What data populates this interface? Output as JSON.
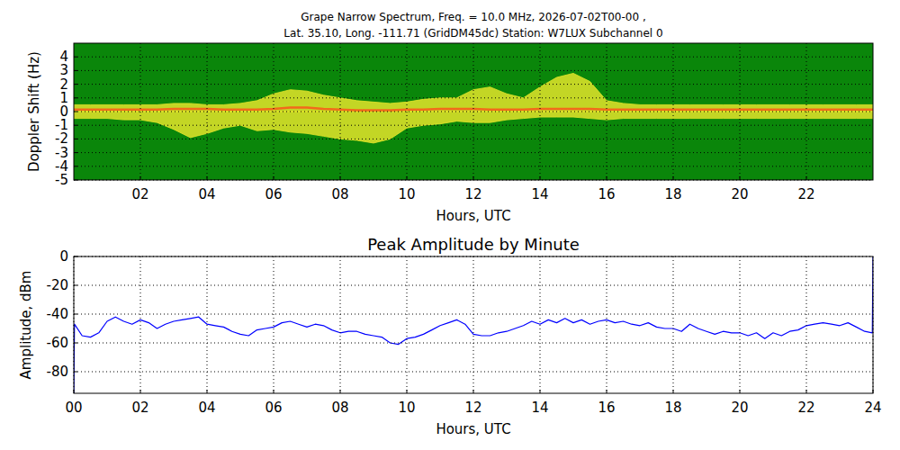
{
  "chart_data": [
    {
      "type": "area",
      "title": "Grape Narrow Spectrum, Freq. = 10.0 MHz, 2026-07-02T00-00 ,",
      "subtitle": "Lat.  35.10, Long. -111.71 (GridDM45dc) Station: W7LUX Subchannel 0",
      "x_label": "Hours, UTC",
      "y_label": "Doppler Shift (Hz)",
      "x": [
        0,
        0.5,
        1,
        1.5,
        2,
        2.5,
        3,
        3.5,
        4,
        4.5,
        5,
        5.5,
        6,
        6.5,
        7,
        7.5,
        8,
        8.5,
        9,
        9.5,
        10,
        10.5,
        11,
        11.5,
        12,
        12.5,
        13,
        13.5,
        14,
        14.5,
        15,
        15.5,
        16,
        16.5,
        17,
        17.5,
        18,
        18.5,
        19,
        19.5,
        20,
        20.5,
        21,
        21.5,
        22,
        22.5,
        23,
        23.5,
        24
      ],
      "series": [
        {
          "type": "area",
          "color": "#e4e42a",
          "values": [
            0.5,
            0.5,
            0.5,
            0.5,
            0.5,
            0.5,
            0.6,
            0.6,
            0.5,
            0.5,
            0.6,
            0.8,
            1.3,
            1.6,
            1.5,
            1.2,
            1.0,
            0.8,
            0.7,
            0.6,
            0.7,
            0.9,
            1.0,
            1.0,
            1.6,
            1.8,
            1.3,
            1.0,
            1.8,
            2.5,
            2.8,
            2.2,
            0.8,
            0.6,
            0.5,
            0.5,
            0.5,
            0.5,
            0.5,
            0.5,
            0.5,
            0.5,
            0.5,
            0.5,
            0.5,
            0.5,
            0.5,
            0.5,
            0.5
          ]
        },
        {
          "type": "area",
          "color": "#e4e42a",
          "values": [
            -0.5,
            -0.5,
            -0.5,
            -0.6,
            -0.6,
            -0.8,
            -1.3,
            -1.9,
            -1.6,
            -1.2,
            -1.0,
            -1.4,
            -1.3,
            -1.5,
            -1.6,
            -1.8,
            -2.0,
            -2.1,
            -2.3,
            -2.0,
            -1.2,
            -1.0,
            -0.9,
            -0.7,
            -0.8,
            -0.8,
            -0.6,
            -0.5,
            -0.4,
            -0.4,
            -0.4,
            -0.5,
            -0.6,
            -0.5,
            -0.5,
            -0.5,
            -0.5,
            -0.5,
            -0.5,
            -0.5,
            -0.5,
            -0.5,
            -0.5,
            -0.5,
            -0.5,
            -0.5,
            -0.5,
            -0.5,
            -0.5
          ]
        },
        {
          "type": "line",
          "color": "#f26a1b",
          "values": [
            0.15,
            0.15,
            0.15,
            0.15,
            0.15,
            0.15,
            0.2,
            0.2,
            0.2,
            0.15,
            0.15,
            0.15,
            0.2,
            0.3,
            0.3,
            0.2,
            0.15,
            0.1,
            0.1,
            0.1,
            0.15,
            0.15,
            0.2,
            0.2,
            0.2,
            0.15,
            0.15,
            0.15,
            0.2,
            0.2,
            0.2,
            0.2,
            0.15,
            0.15,
            0.15,
            0.15,
            0.15,
            0.15,
            0.15,
            0.15,
            0.15,
            0.15,
            0.15,
            0.15,
            0.15,
            0.15,
            0.15,
            0.15,
            0.15
          ]
        }
      ],
      "xlim": [
        0,
        24
      ],
      "ylim": [
        -5,
        5
      ],
      "xticks": [
        {
          "value": 2,
          "label": "02"
        },
        {
          "value": 4,
          "label": "04"
        },
        {
          "value": 6,
          "label": "06"
        },
        {
          "value": 8,
          "label": "08"
        },
        {
          "value": 10,
          "label": "10"
        },
        {
          "value": 12,
          "label": "12"
        },
        {
          "value": 14,
          "label": "14"
        },
        {
          "value": 16,
          "label": "16"
        },
        {
          "value": 18,
          "label": "18"
        },
        {
          "value": 20,
          "label": "20"
        },
        {
          "value": 22,
          "label": "22"
        }
      ],
      "yticks": [
        -5,
        -4,
        -3,
        -2,
        -1,
        0,
        1,
        2,
        3,
        4
      ],
      "grid": true
    },
    {
      "type": "line",
      "title": "Peak Amplitude by Minute",
      "x_label": "Hours, UTC",
      "y_label": "Amplitude, dBm",
      "x": [
        0,
        0.02,
        0.25,
        0.5,
        0.75,
        1,
        1.25,
        1.5,
        1.75,
        2,
        2.25,
        2.5,
        2.75,
        3,
        3.25,
        3.5,
        3.75,
        4,
        4.25,
        4.5,
        4.75,
        5,
        5.25,
        5.5,
        5.75,
        6,
        6.25,
        6.5,
        6.75,
        7,
        7.25,
        7.5,
        7.75,
        8,
        8.25,
        8.5,
        8.75,
        9,
        9.25,
        9.5,
        9.75,
        10,
        10.25,
        10.5,
        10.75,
        11,
        11.25,
        11.5,
        11.75,
        12,
        12.25,
        12.5,
        12.75,
        13,
        13.25,
        13.5,
        13.75,
        14,
        14.25,
        14.5,
        14.75,
        15,
        15.25,
        15.5,
        15.75,
        16,
        16.25,
        16.5,
        16.75,
        17,
        17.25,
        17.5,
        17.75,
        18,
        18.25,
        18.5,
        18.75,
        19,
        19.25,
        19.5,
        19.75,
        20,
        20.25,
        20.5,
        20.75,
        21,
        21.25,
        21.5,
        21.75,
        22,
        22.25,
        22.5,
        22.75,
        23,
        23.25,
        23.5,
        23.75,
        23.98,
        24
      ],
      "series": [
        {
          "color": "#0000ff",
          "values": [
            -95,
            -47,
            -55,
            -56,
            -53,
            -45,
            -42,
            -45,
            -47,
            -44,
            -46,
            -50,
            -47,
            -45,
            -44,
            -43,
            -42,
            -47,
            -48,
            -49,
            -52,
            -54,
            -55,
            -51,
            -50,
            -49,
            -46,
            -45,
            -47,
            -49,
            -47,
            -48,
            -51,
            -53,
            -52,
            -52,
            -54,
            -55,
            -56,
            -60,
            -61,
            -57,
            -56,
            -54,
            -51,
            -48,
            -46,
            -44,
            -47,
            -54,
            -55,
            -55,
            -53,
            -52,
            -50,
            -48,
            -45,
            -47,
            -44,
            -46,
            -43,
            -46,
            -44,
            -47,
            -45,
            -44,
            -46,
            -45,
            -47,
            -48,
            -46,
            -49,
            -50,
            -50,
            -52,
            -47,
            -50,
            -52,
            -54,
            -52,
            -53,
            -53,
            -55,
            -53,
            -57,
            -53,
            -55,
            -52,
            -51,
            -48,
            -47,
            -46,
            -47,
            -48,
            -46,
            -49,
            -52,
            -53,
            0
          ]
        }
      ],
      "xlim": [
        0,
        24
      ],
      "ylim": [
        -95,
        0
      ],
      "xticks": [
        {
          "value": 0,
          "label": "00"
        },
        {
          "value": 2,
          "label": "02"
        },
        {
          "value": 4,
          "label": "04"
        },
        {
          "value": 6,
          "label": "06"
        },
        {
          "value": 8,
          "label": "08"
        },
        {
          "value": 10,
          "label": "10"
        },
        {
          "value": 12,
          "label": "12"
        },
        {
          "value": 14,
          "label": "14"
        },
        {
          "value": 16,
          "label": "16"
        },
        {
          "value": 18,
          "label": "18"
        },
        {
          "value": 20,
          "label": "20"
        },
        {
          "value": 22,
          "label": "22"
        },
        {
          "value": 24,
          "label": "24"
        }
      ],
      "yticks": [
        0,
        -20,
        -40,
        -60,
        -80
      ],
      "grid": true
    }
  ]
}
